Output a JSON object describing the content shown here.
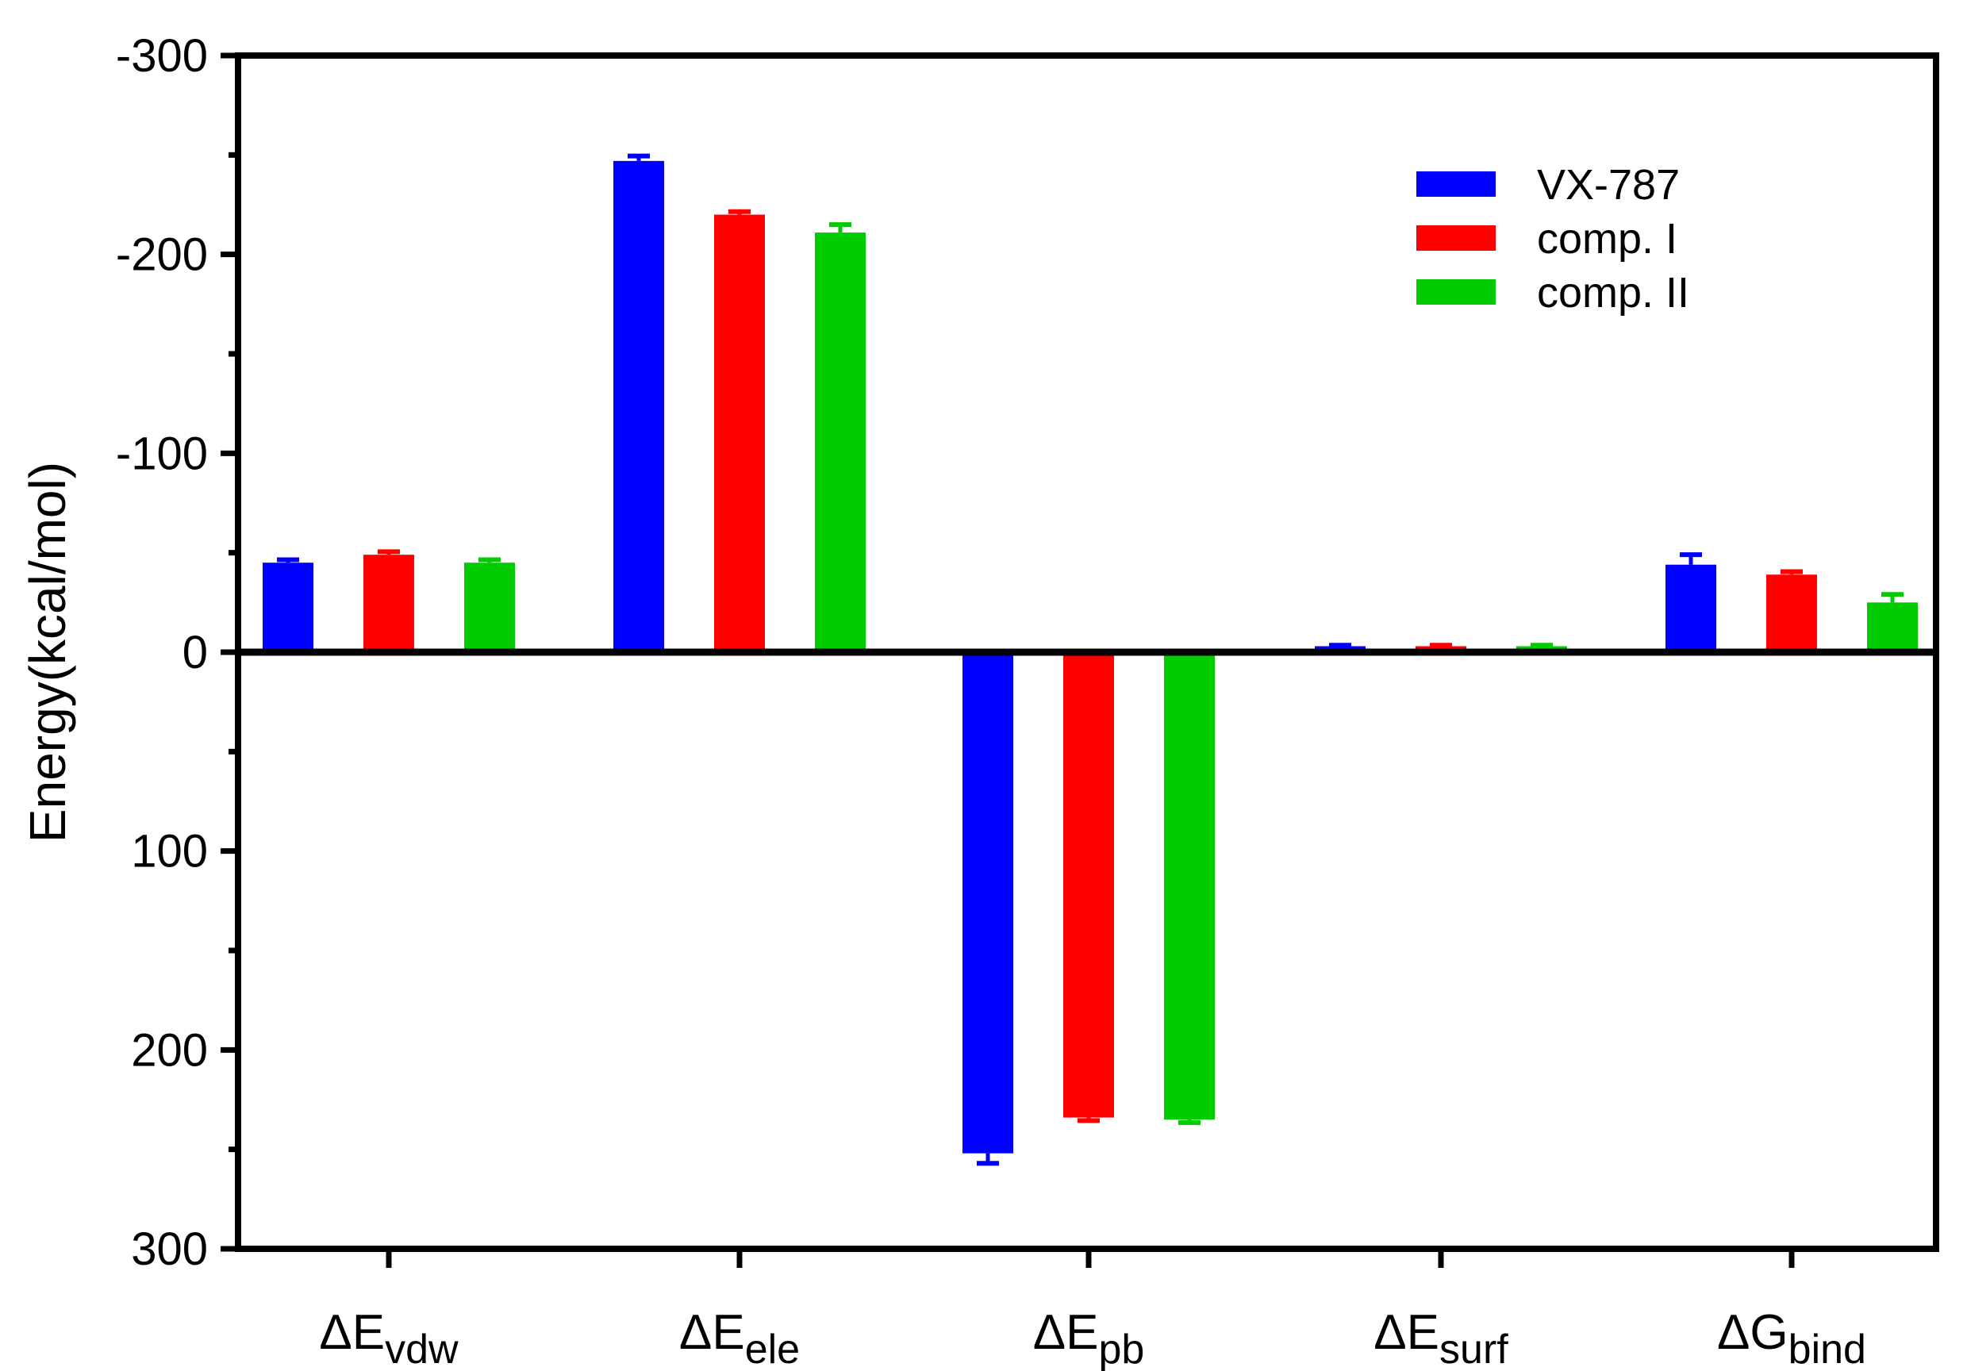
{
  "chart_data": {
    "type": "bar",
    "ylabel": "Energy(kcal/mol)",
    "y_axis_inverted": true,
    "ylim": [
      -300,
      300
    ],
    "yticks": [
      -300,
      -200,
      -100,
      0,
      100,
      200,
      300
    ],
    "ytick_labels": [
      "-300",
      "-200",
      "-100",
      "0",
      "100",
      "200",
      "300"
    ],
    "categories": [
      {
        "symbol": "ΔE",
        "sub": "vdw"
      },
      {
        "symbol": "ΔE",
        "sub": "ele"
      },
      {
        "symbol": "ΔE",
        "sub": "pb"
      },
      {
        "symbol": "ΔE",
        "sub": "surf"
      },
      {
        "symbol": "ΔG",
        "sub": "bind"
      }
    ],
    "series": [
      {
        "name": "VX-787",
        "color": "#0000FF",
        "values": [
          -45,
          -247,
          252,
          -3,
          -44
        ],
        "errors": [
          1.5,
          2.5,
          5,
          0.5,
          5
        ]
      },
      {
        "name": "comp. I",
        "color": "#FF0000",
        "values": [
          -49,
          -220,
          234,
          -3,
          -39
        ],
        "errors": [
          1.5,
          1.5,
          1.5,
          0.5,
          1.5
        ]
      },
      {
        "name": "comp. II",
        "color": "#00CC00",
        "values": [
          -45,
          -211,
          235,
          -3,
          -25
        ],
        "errors": [
          1.5,
          4,
          1.5,
          0.5,
          4
        ]
      }
    ],
    "legend_position": "top-right",
    "grid": false
  }
}
